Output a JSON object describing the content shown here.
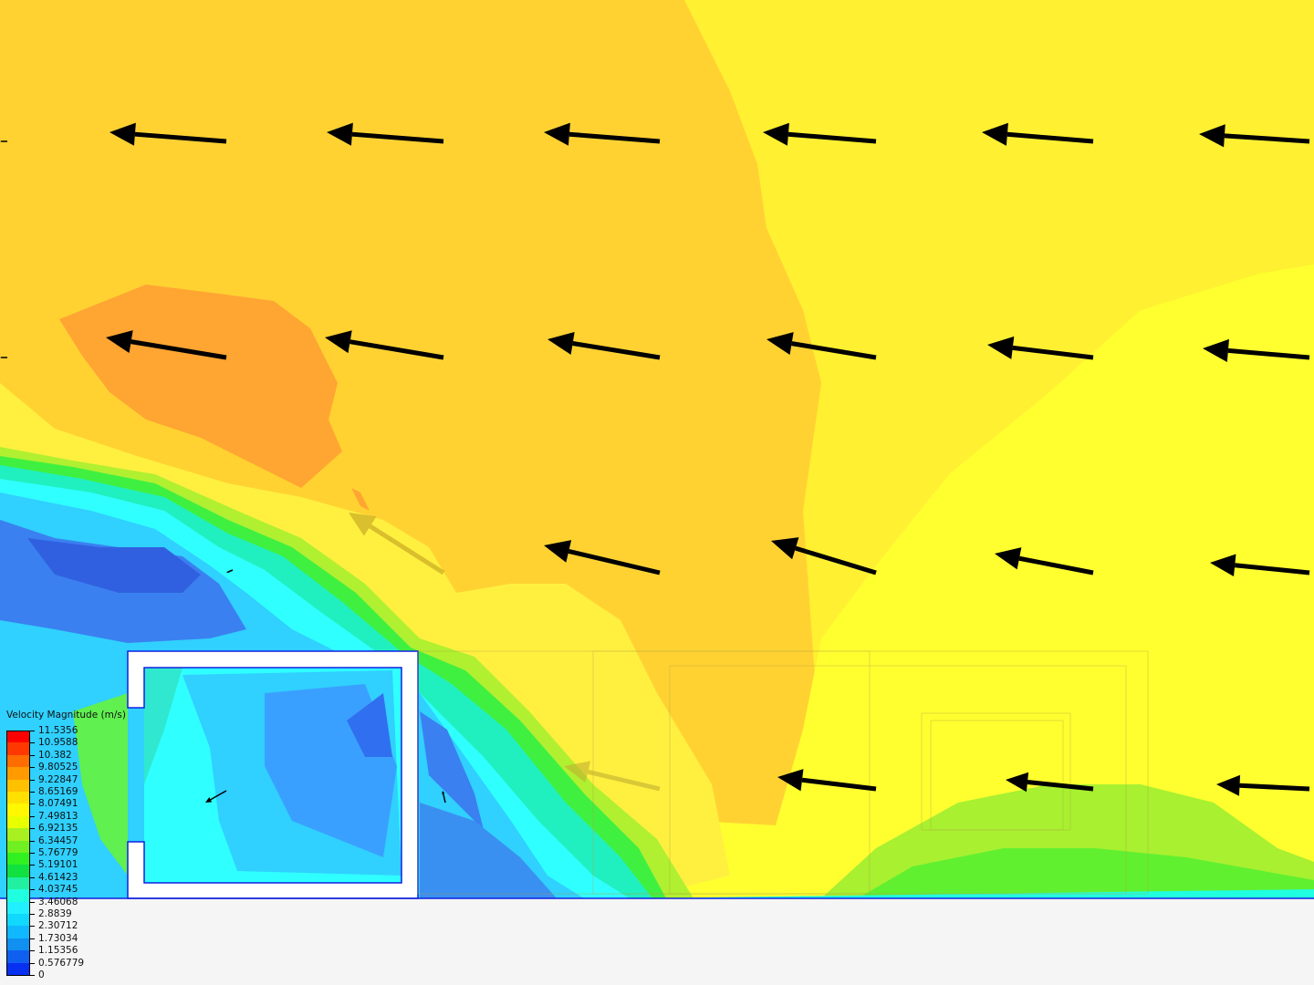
{
  "chart_data": {
    "type": "heatmap",
    "title": "",
    "legend": {
      "title": "Velocity Magnitude (m/s)",
      "placement": "bottom-left",
      "ticks": [
        "11.5356",
        "10.9588",
        "10.382",
        "9.80525",
        "9.22847",
        "8.65169",
        "8.07491",
        "7.49813",
        "6.92135",
        "6.34457",
        "5.76779",
        "5.19101",
        "4.61423",
        "4.03745",
        "3.46068",
        "2.8839",
        "2.30712",
        "1.73034",
        "1.15356",
        "0.576779",
        "0"
      ],
      "colors": [
        "#ff0000",
        "#ff3800",
        "#ff6c00",
        "#ff9a00",
        "#ffc000",
        "#ffe000",
        "#fff800",
        "#e8ff00",
        "#a8f020",
        "#70f020",
        "#30f020",
        "#10e040",
        "#20f0a0",
        "#20ffe0",
        "#20f0ff",
        "#10d8ff",
        "#10b8ff",
        "#1090f0",
        "#1060f0",
        "#0830f0"
      ],
      "range": [
        0,
        11.5356
      ]
    }
  }
}
